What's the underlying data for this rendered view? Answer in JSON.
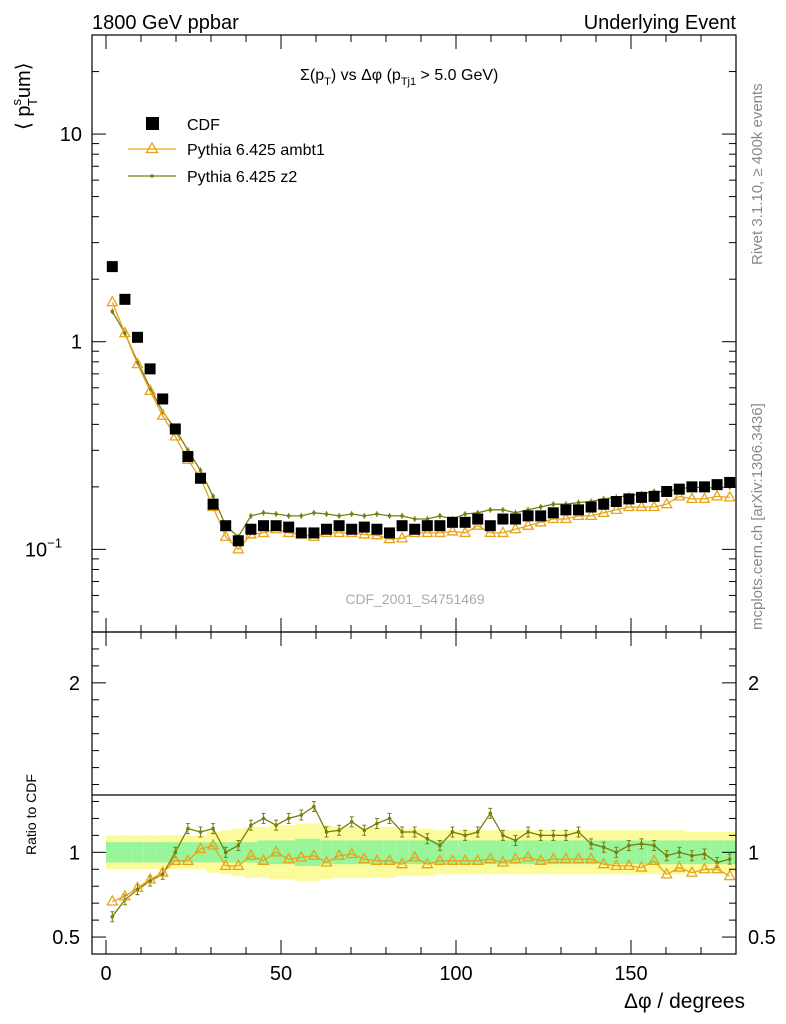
{
  "header": {
    "left": "1800 GeV ppbar",
    "right": "Underlying Event"
  },
  "side_labels": {
    "rivet": "Rivet 3.1.10, ≥ 400k events",
    "mcplots": "mcplots.cern.ch [arXiv:1306.3436]"
  },
  "watermark": "CDF_2001_S4751469",
  "chart_data": [
    {
      "type": "scatter",
      "title": "Σ(p_T) vs Δφ (p_Tj1 > 5.0 GeV)",
      "title_parts": {
        "a": "Σ(p",
        "a_sub": "T",
        "b": ") vs Δφ (p",
        "b_sub": "Tj1",
        "c": " > 5.0 GeV)"
      },
      "ylabel": "⟨ p_T^s um⟩",
      "ylabel_parts": {
        "open": "⟨ p",
        "sup": "s",
        "sub": "T",
        "close": "um⟩"
      },
      "xlabel": "",
      "yscale": "log",
      "xlim": [
        -4,
        180
      ],
      "ylim": [
        0.04,
        30
      ],
      "ytick_labels": [
        {
          "value": 10,
          "label": "10"
        },
        {
          "value": 1,
          "label": "1"
        },
        {
          "value": 0.1,
          "label": "10",
          "sup": "−1"
        }
      ],
      "legend_position": "top-left",
      "x": [
        1.8,
        5.4,
        9,
        12.6,
        16.2,
        19.8,
        23.4,
        27,
        30.6,
        34.2,
        37.8,
        41.4,
        45,
        48.6,
        52.2,
        55.8,
        59.4,
        63,
        66.6,
        70.2,
        73.8,
        77.4,
        81,
        84.6,
        88.2,
        91.8,
        95.4,
        99,
        102.6,
        106.2,
        109.8,
        113.4,
        117,
        120.6,
        124.2,
        127.8,
        131.4,
        135,
        138.6,
        142.2,
        145.8,
        149.4,
        153,
        156.6,
        160.2,
        163.8,
        167.4,
        171,
        174.6,
        178.2
      ],
      "series": [
        {
          "name": "CDF",
          "marker": "square",
          "color": "#000000",
          "values": [
            2.3,
            1.6,
            1.05,
            0.74,
            0.53,
            0.38,
            0.28,
            0.22,
            0.165,
            0.13,
            0.11,
            0.125,
            0.13,
            0.13,
            0.128,
            0.12,
            0.12,
            0.125,
            0.13,
            0.125,
            0.128,
            0.125,
            0.12,
            0.13,
            0.125,
            0.13,
            0.13,
            0.135,
            0.135,
            0.14,
            0.13,
            0.14,
            0.14,
            0.145,
            0.145,
            0.15,
            0.155,
            0.155,
            0.16,
            0.165,
            0.17,
            0.175,
            0.178,
            0.18,
            0.19,
            0.195,
            0.2,
            0.2,
            0.205,
            0.21
          ]
        },
        {
          "name": "Pythia 6.425 ambt1",
          "marker": "open-triangle",
          "color": "#e8a317",
          "values": [
            1.55,
            1.1,
            0.78,
            0.58,
            0.44,
            0.35,
            0.27,
            0.22,
            0.16,
            0.115,
            0.1,
            0.118,
            0.12,
            0.125,
            0.12,
            0.118,
            0.115,
            0.12,
            0.12,
            0.12,
            0.118,
            0.117,
            0.112,
            0.113,
            0.12,
            0.12,
            0.12,
            0.122,
            0.12,
            0.13,
            0.12,
            0.12,
            0.125,
            0.13,
            0.135,
            0.14,
            0.14,
            0.145,
            0.145,
            0.15,
            0.155,
            0.16,
            0.16,
            0.16,
            0.165,
            0.18,
            0.175,
            0.175,
            0.18,
            0.178
          ]
        },
        {
          "name": "Pythia 6.425 z2",
          "marker": "dot",
          "color": "#7b7d0e",
          "values": [
            1.4,
            1.1,
            0.8,
            0.6,
            0.46,
            0.38,
            0.3,
            0.24,
            0.18,
            0.13,
            0.115,
            0.145,
            0.15,
            0.148,
            0.145,
            0.145,
            0.15,
            0.148,
            0.145,
            0.148,
            0.145,
            0.148,
            0.145,
            0.145,
            0.14,
            0.14,
            0.145,
            0.14,
            0.148,
            0.15,
            0.155,
            0.155,
            0.15,
            0.155,
            0.16,
            0.165,
            0.165,
            0.168,
            0.17,
            0.175,
            0.178,
            0.182,
            0.185,
            0.19,
            0.19,
            0.195,
            0.2,
            0.198,
            0.198,
            0.2
          ]
        }
      ]
    },
    {
      "type": "line",
      "ylabel": "Ratio to CDF",
      "xlabel": "Δφ / degrees",
      "xlim": [
        -4,
        180
      ],
      "ylim": [
        0.4,
        2.3
      ],
      "xticks": [
        0,
        50,
        100,
        150
      ],
      "yticks": [
        0.5,
        1,
        2
      ],
      "band_inner": [
        0.06,
        0.06,
        0.06,
        0.06,
        0.06,
        0.06,
        0.06,
        0.06,
        0.06,
        0.06,
        0.06,
        0.06,
        0.07,
        0.07,
        0.07,
        0.08,
        0.08,
        0.07,
        0.07,
        0.07,
        0.07,
        0.07,
        0.07,
        0.07,
        0.07,
        0.07,
        0.07,
        0.07,
        0.07,
        0.07,
        0.07,
        0.07,
        0.07,
        0.07,
        0.07,
        0.07,
        0.07,
        0.07,
        0.07,
        0.07,
        0.07,
        0.07,
        0.07,
        0.07,
        0.07,
        0.07,
        0.07,
        0.07,
        0.07,
        0.07
      ],
      "band_outer": [
        0.1,
        0.1,
        0.1,
        0.1,
        0.1,
        0.1,
        0.1,
        0.1,
        0.12,
        0.13,
        0.14,
        0.15,
        0.15,
        0.16,
        0.16,
        0.17,
        0.17,
        0.16,
        0.15,
        0.15,
        0.15,
        0.15,
        0.15,
        0.14,
        0.14,
        0.14,
        0.13,
        0.13,
        0.13,
        0.13,
        0.13,
        0.13,
        0.13,
        0.13,
        0.13,
        0.13,
        0.13,
        0.13,
        0.13,
        0.13,
        0.13,
        0.13,
        0.13,
        0.13,
        0.13,
        0.13,
        0.12,
        0.12,
        0.12,
        0.12
      ],
      "series": [
        {
          "name": "Pythia 6.425 ambt1",
          "color": "#e8a317",
          "values": [
            0.71,
            0.74,
            0.79,
            0.84,
            0.88,
            0.95,
            0.95,
            1.02,
            1.04,
            0.92,
            0.92,
            0.98,
            0.95,
            1.0,
            0.96,
            0.97,
            0.98,
            0.94,
            0.98,
            0.99,
            0.96,
            0.95,
            0.95,
            0.93,
            0.97,
            0.93,
            0.95,
            0.95,
            0.95,
            0.95,
            0.96,
            0.94,
            0.96,
            0.97,
            0.95,
            0.96,
            0.96,
            0.96,
            0.96,
            0.93,
            0.92,
            0.92,
            0.91,
            0.95,
            0.87,
            0.91,
            0.88,
            0.9,
            0.9,
            0.86
          ]
        },
        {
          "name": "Pythia 6.425 z2",
          "color": "#7b7d0e",
          "values": [
            0.62,
            0.72,
            0.78,
            0.83,
            0.87,
            1.0,
            1.14,
            1.12,
            1.14,
            1.0,
            1.04,
            1.16,
            1.2,
            1.16,
            1.2,
            1.22,
            1.27,
            1.12,
            1.13,
            1.18,
            1.13,
            1.17,
            1.2,
            1.12,
            1.12,
            1.08,
            1.04,
            1.12,
            1.1,
            1.12,
            1.23,
            1.1,
            1.07,
            1.12,
            1.1,
            1.1,
            1.1,
            1.12,
            1.05,
            1.03,
            1.0,
            1.04,
            1.05,
            1.04,
            0.98,
            1.0,
            0.98,
            0.99,
            0.94,
            0.96
          ]
        }
      ]
    }
  ]
}
